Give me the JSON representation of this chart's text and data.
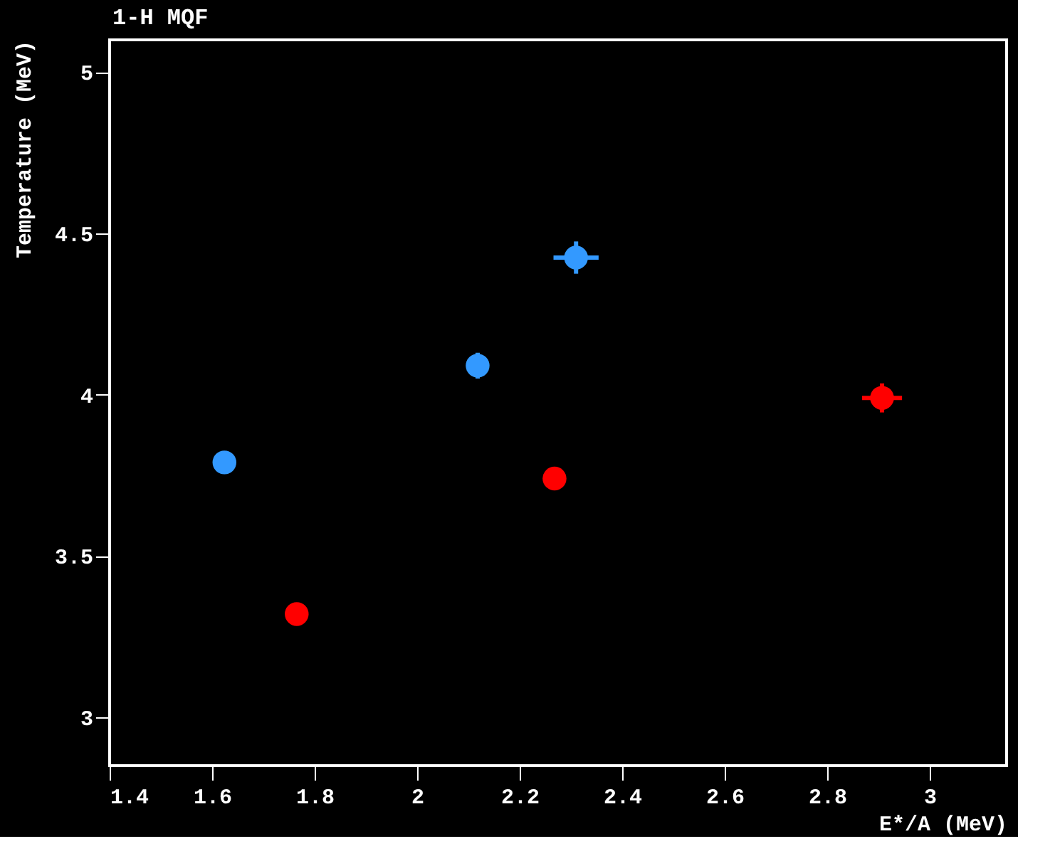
{
  "chart_data": {
    "type": "scatter",
    "title": "1-H   MQF",
    "xlabel": "E*/A (MeV)",
    "ylabel": "Temperature (MeV)",
    "xlim": [
      1.4,
      3.15
    ],
    "xticks": [
      1.4,
      1.6,
      1.8,
      2,
      2.2,
      2.4,
      2.6,
      2.8,
      3
    ],
    "ylim": [
      2.85,
      5.1
    ],
    "yticks": [
      3,
      3.5,
      4,
      4.5,
      5
    ],
    "marker": "circle",
    "series": [
      {
        "color": "#3399ff",
        "x": [
          1.624,
          2.118,
          2.31
        ],
        "values": [
          3.79,
          4.09,
          4.425
        ],
        "errors": [
          0.035,
          0.04,
          0.05
        ],
        "xerrors": [
          null,
          null,
          0.044
        ]
      },
      {
        "color": "#ff0000",
        "x": [
          1.765,
          2.268,
          2.907
        ],
        "values": [
          3.32,
          3.74,
          3.99
        ],
        "errors": [
          null,
          null,
          0.045
        ],
        "xerrors": [
          null,
          null,
          0.039
        ]
      }
    ]
  }
}
